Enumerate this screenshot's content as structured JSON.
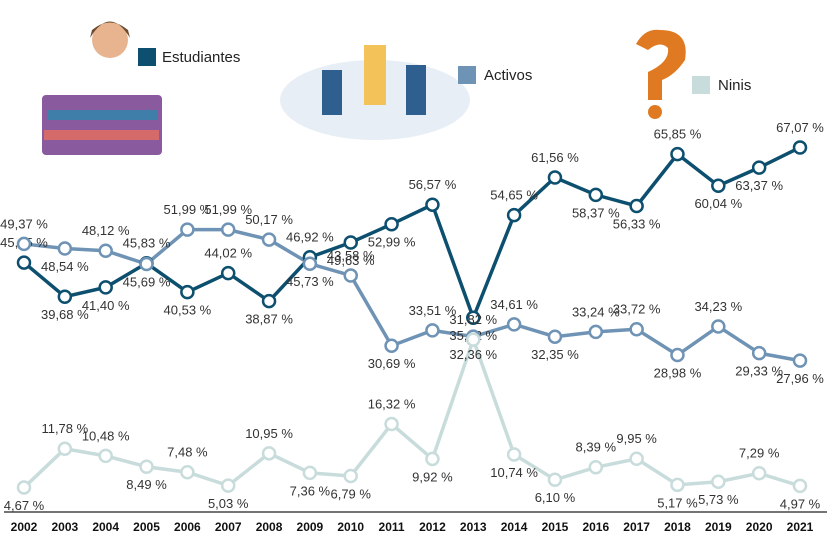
{
  "chart_data": {
    "type": "line",
    "categories": [
      "2002",
      "2003",
      "2004",
      "2005",
      "2006",
      "2007",
      "2008",
      "2009",
      "2010",
      "2011",
      "2012",
      "2013",
      "2014",
      "2015",
      "2016",
      "2017",
      "2018",
      "2019",
      "2020",
      "2021"
    ],
    "series": [
      {
        "name": "Estudiantes",
        "color": "#0d4f6e",
        "values": [
          45.95,
          39.68,
          41.4,
          45.83,
          40.53,
          44.02,
          38.87,
          46.92,
          49.63,
          52.99,
          56.57,
          35.82,
          54.65,
          61.56,
          58.37,
          56.33,
          65.85,
          60.04,
          63.37,
          67.07
        ],
        "value_labels": [
          "45,95 %",
          "39,68 %",
          "41,40 %",
          "45,83 %",
          "40,53 %",
          "44,02 %",
          "38,87 %",
          "46,92 %",
          "49,63 %",
          "52,99 %",
          "56,57 %",
          "35,82 %",
          "54,65 %",
          "61,56 %",
          "58,37 %",
          "56,33 %",
          "65,85 %",
          "60,04 %",
          "63,37 %",
          "67,07 %"
        ]
      },
      {
        "name": "Activos",
        "color": "#6f93b5",
        "values": [
          49.37,
          48.54,
          48.12,
          45.69,
          51.99,
          51.99,
          50.17,
          45.73,
          43.58,
          30.69,
          33.51,
          32.36,
          34.61,
          32.35,
          33.24,
          33.72,
          28.98,
          34.23,
          29.33,
          27.96
        ],
        "value_labels": [
          "49,37 %",
          "48,54 %",
          "48,12 %",
          "45,69 %",
          "51,99 %",
          "51,99 %",
          "50,17 %",
          "45,73 %",
          "43,58 %",
          "30,69 %",
          "33,51 %",
          "32,36 %",
          "34,61 %",
          "32,35 %",
          "33,24 %",
          "33,72 %",
          "28,98 %",
          "34,23 %",
          "29,33 %",
          "27,96 %"
        ]
      },
      {
        "name": "Ninis",
        "color": "#c9dcdc",
        "values": [
          4.67,
          11.78,
          10.48,
          8.49,
          7.48,
          5.03,
          10.95,
          7.36,
          6.79,
          16.32,
          9.92,
          31.82,
          10.74,
          6.1,
          8.39,
          9.95,
          5.17,
          5.73,
          7.29,
          4.97
        ],
        "value_labels": [
          "4,67 %",
          "11,78 %",
          "10,48 %",
          "8,49 %",
          "7,48 %",
          "5,03 %",
          "10,95 %",
          "7,36 %",
          "6,79 %",
          "16,32 %",
          "9,92 %",
          "31,82 %",
          "10,74 %",
          "6,10 %",
          "8,39 %",
          "9,95 %",
          "5,17 %",
          "5,73 %",
          "7,29 %",
          "4,97 %"
        ]
      }
    ]
  }
}
